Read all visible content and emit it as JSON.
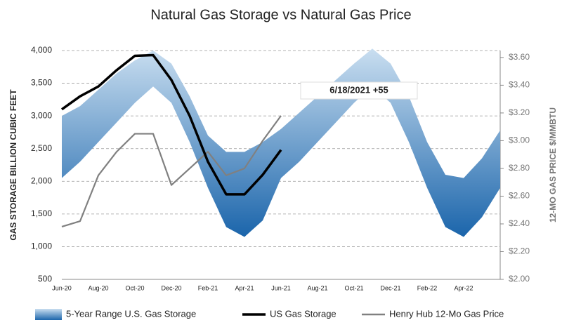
{
  "chart_data": {
    "type": "line",
    "title": "Natural Gas Storage vs Natural Gas Price",
    "ylabel": "GAS STORAGE BILLION CUBIC FEET",
    "y2label": "12-MO GAS PRICE $/MMBTU",
    "annotation": "6/18/2021 +55",
    "categories": [
      "Jun-20",
      null,
      "Aug-20",
      null,
      "Oct-20",
      null,
      "Dec-20",
      null,
      "Feb-21",
      null,
      "Apr-21",
      null,
      "Jun-21",
      null,
      "Aug-21",
      null,
      "Oct-21",
      null,
      "Dec-21",
      null,
      "Feb-22",
      null,
      "Apr-22",
      null,
      null
    ],
    "ylim": [
      500,
      4000
    ],
    "yticks": [
      500,
      {
        "value": 1000,
        "label": "1,000"
      },
      {
        "value": 1500,
        "label": "1,500"
      },
      {
        "value": 2000,
        "label": "2,000"
      },
      {
        "value": 2500,
        "label": "2,500"
      },
      {
        "value": 3000,
        "label": "3,000"
      },
      {
        "value": 3500,
        "label": "3,500"
      },
      {
        "value": 4000,
        "label": "4,000"
      }
    ],
    "y2lim": [
      2.0,
      3.65
    ],
    "y2ticks": [
      {
        "value": 2.0,
        "label": "$2.00"
      },
      {
        "value": 2.2,
        "label": "$2.20"
      },
      {
        "value": 2.4,
        "label": "$2.40"
      },
      {
        "value": 2.6,
        "label": "$2.60"
      },
      {
        "value": 2.8,
        "label": "$2.80"
      },
      {
        "value": 3.0,
        "label": "$3.00"
      },
      {
        "value": 3.2,
        "label": "$3.20"
      },
      {
        "value": 3.4,
        "label": "$3.40"
      },
      {
        "value": 3.6,
        "label": "$3.60"
      }
    ],
    "grid": true,
    "legend": "bottom",
    "series": [
      {
        "name": "5-Year Range U.S. Gas Storage",
        "type": "range",
        "colors": [
          "#c9def0",
          "#1b65ab"
        ],
        "upper": [
          3000,
          3150,
          3400,
          3650,
          3850,
          4000,
          3800,
          3300,
          2700,
          2450,
          2450,
          2600,
          2800,
          3050,
          3300,
          3550,
          3800,
          4030,
          3800,
          3300,
          2600,
          2100,
          2050,
          2350,
          2780
        ],
        "lower": [
          2050,
          2300,
          2600,
          2900,
          3200,
          3450,
          3200,
          2600,
          1900,
          1300,
          1150,
          1400,
          2050,
          2300,
          2600,
          2900,
          3200,
          3450,
          3200,
          2600,
          1900,
          1300,
          1150,
          1450,
          1900
        ]
      },
      {
        "name": "US Gas Storage",
        "color": "#000000",
        "values": [
          3100,
          3300,
          3450,
          3700,
          3920,
          3930,
          3550,
          3000,
          2300,
          1800,
          1800,
          2100,
          2480,
          null,
          null,
          null,
          null,
          null,
          null,
          null,
          null,
          null,
          null,
          null,
          null
        ]
      },
      {
        "name": "Henry Hub 12-Mo Gas Price",
        "color": "#808080",
        "axis": "y2",
        "values": [
          2.38,
          2.42,
          2.75,
          2.92,
          3.05,
          3.05,
          2.68,
          2.8,
          2.92,
          2.75,
          2.8,
          3.0,
          3.18,
          null,
          null,
          null,
          null,
          null,
          null,
          null,
          null,
          null,
          null,
          null,
          null
        ]
      }
    ]
  }
}
